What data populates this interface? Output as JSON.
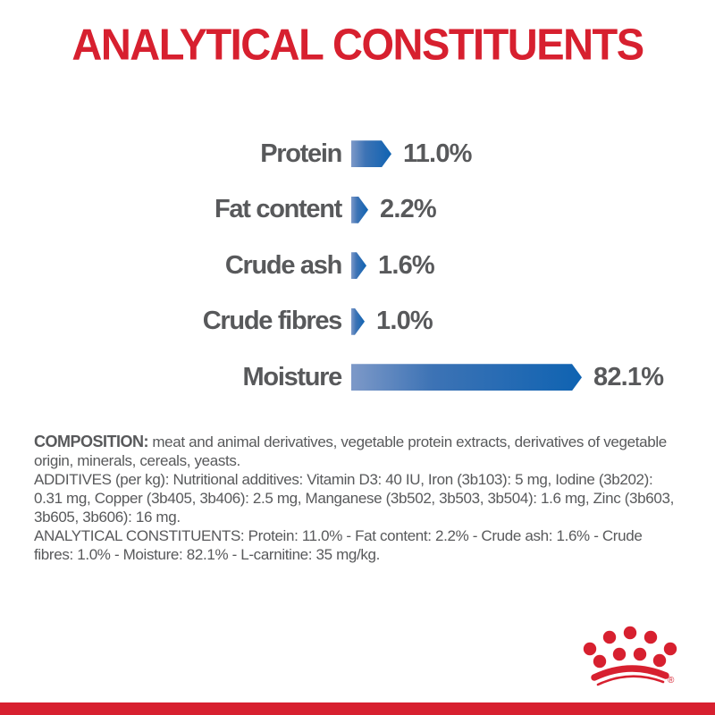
{
  "title": "ANALYTICAL CONSTITUENTS",
  "colors": {
    "accent_red": "#d7202f",
    "bar_blue_dark": "#0f63b2",
    "bar_blue_light": "#7d99c8",
    "text_gray": "#58595b"
  },
  "chart_data": {
    "type": "bar",
    "orientation": "horizontal",
    "title": "ANALYTICAL CONSTITUENTS",
    "categories": [
      "Protein",
      "Fat content",
      "Crude ash",
      "Crude fibres",
      "Moisture"
    ],
    "values": [
      11.0,
      2.2,
      1.6,
      1.0,
      82.1
    ],
    "value_labels": [
      "11.0%",
      "2.2%",
      "1.6%",
      "1.0%",
      "82.1%"
    ],
    "unit": "%",
    "xlim": [
      0,
      100
    ],
    "grid": false,
    "legend": "none",
    "bar_style": "arrow-pointed-right, blue gradient"
  },
  "info_text": {
    "composition_label": "COMPOSITION:",
    "composition_body": " meat and animal derivatives, vegetable protein extracts, derivatives of vegetable origin, minerals, cereals, yeasts.",
    "additives": "ADDITIVES (per kg): Nutritional additives: Vitamin D3: 40 IU, Iron (3b103): 5 mg, Iodine (3b202): 0.31 mg, Copper (3b405, 3b406): 2.5 mg, Manganese (3b502, 3b503, 3b504): 1.6 mg, Zinc (3b603, 3b605, 3b606): 16 mg.",
    "analytical": "ANALYTICAL CONSTITUENTS: Protein: 11.0% - Fat content: 2.2% - Crude ash: 1.6% - Crude fibres: 1.0% - Moisture: 82.1% - L-carnitine: 35 mg/kg."
  },
  "logo": {
    "name": "royal-canin-crown",
    "registered_mark": "®"
  }
}
